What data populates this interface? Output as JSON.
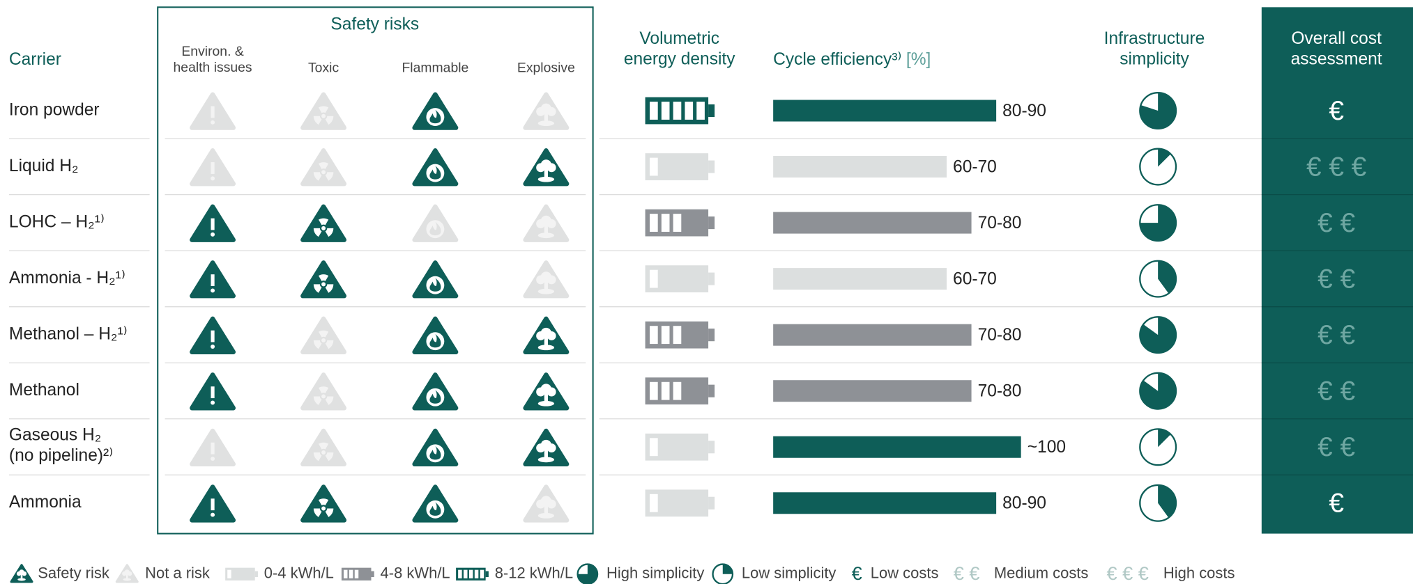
{
  "header": {
    "carrier": "Carrier",
    "safety": "Safety risks",
    "safety_columns": [
      "Environ. &\nhealth issues",
      "Toxic",
      "Flammable",
      "Explosive"
    ],
    "density": "Volumetric\nenergy density",
    "efficiency": "Cycle efficiency³⁾",
    "efficiency_unit": "[%]",
    "simplicity": "Infrastructure\nsimplicity",
    "cost": "Overall cost\nassessment"
  },
  "efficiency_scale": [
    0,
    100
  ],
  "rows": [
    {
      "carrier": "Iron powder",
      "risks": [
        false,
        false,
        true,
        false
      ],
      "density_cells": 5,
      "efficiency": {
        "value": 90,
        "label": "80-90"
      },
      "efficiency_color": "#0e5e58",
      "simplicity": 0.8,
      "cost": "€",
      "cost_color": "#ffffff"
    },
    {
      "carrier": "Liquid H₂",
      "risks": [
        false,
        false,
        true,
        true
      ],
      "density_cells": 1,
      "efficiency": {
        "value": 70,
        "label": "60-70"
      },
      "efficiency_color": "#dcdfdf",
      "simplicity": 0.125,
      "cost": "€ € €",
      "cost_color": "#6fa7a2"
    },
    {
      "carrier": "LOHC – H₂¹⁾",
      "risks": [
        true,
        true,
        false,
        false
      ],
      "density_cells": 3,
      "efficiency": {
        "value": 80,
        "label": "70-80"
      },
      "efficiency_color": "#8e9196",
      "simplicity": 0.75,
      "cost": "€ €",
      "cost_color": "#6fa7a2"
    },
    {
      "carrier": "Ammonia - H₂¹⁾",
      "risks": [
        true,
        true,
        true,
        false
      ],
      "density_cells": 1,
      "efficiency": {
        "value": 70,
        "label": "60-70"
      },
      "efficiency_color": "#dcdfdf",
      "simplicity": 0.4,
      "cost": "€ €",
      "cost_color": "#6fa7a2"
    },
    {
      "carrier": "Methanol – H₂¹⁾",
      "risks": [
        true,
        false,
        true,
        true
      ],
      "density_cells": 3,
      "efficiency": {
        "value": 80,
        "label": "70-80"
      },
      "efficiency_color": "#8e9196",
      "simplicity": 0.85,
      "cost": "€ €",
      "cost_color": "#6fa7a2"
    },
    {
      "carrier": "Methanol",
      "risks": [
        true,
        false,
        true,
        true
      ],
      "density_cells": 3,
      "efficiency": {
        "value": 80,
        "label": "70-80"
      },
      "efficiency_color": "#8e9196",
      "simplicity": 0.85,
      "cost": "€ €",
      "cost_color": "#6fa7a2"
    },
    {
      "carrier": "Gaseous H₂\n(no pipeline)²⁾",
      "risks": [
        false,
        false,
        true,
        true
      ],
      "density_cells": 1,
      "efficiency": {
        "value": 100,
        "label": "~100"
      },
      "efficiency_color": "#0e5e58",
      "simplicity": 0.125,
      "cost": "€ €",
      "cost_color": "#6fa7a2"
    },
    {
      "carrier": "Ammonia",
      "risks": [
        true,
        true,
        true,
        false
      ],
      "density_cells": 1,
      "efficiency": {
        "value": 90,
        "label": "80-90"
      },
      "efficiency_color": "#0e5e58",
      "simplicity": 0.4,
      "cost": "€",
      "cost_color": "#ffffff"
    }
  ],
  "legend": {
    "risk": "Safety risk",
    "no_risk": "Not a risk",
    "density": [
      {
        "cells": 1,
        "color": "#dcdfdf",
        "label": "0-4 kWh/L"
      },
      {
        "cells": 3,
        "color": "#8e9196",
        "label": "4-8 kWh/L"
      },
      {
        "cells": 5,
        "color": "#0e5e58",
        "label": "8-12 kWh/L"
      }
    ],
    "simplicity": [
      {
        "value": 0.75,
        "label": "High simplicity"
      },
      {
        "value": 0.25,
        "label": "Low simplicity"
      }
    ],
    "cost": [
      {
        "symbol": "€",
        "color": "#0e5e58",
        "label": "Low costs"
      },
      {
        "symbol": "€ €",
        "color": "#b0c8c5",
        "label": "Medium costs"
      },
      {
        "symbol": "€ € €",
        "color": "#b0c8c5",
        "label": "High costs"
      }
    ]
  }
}
